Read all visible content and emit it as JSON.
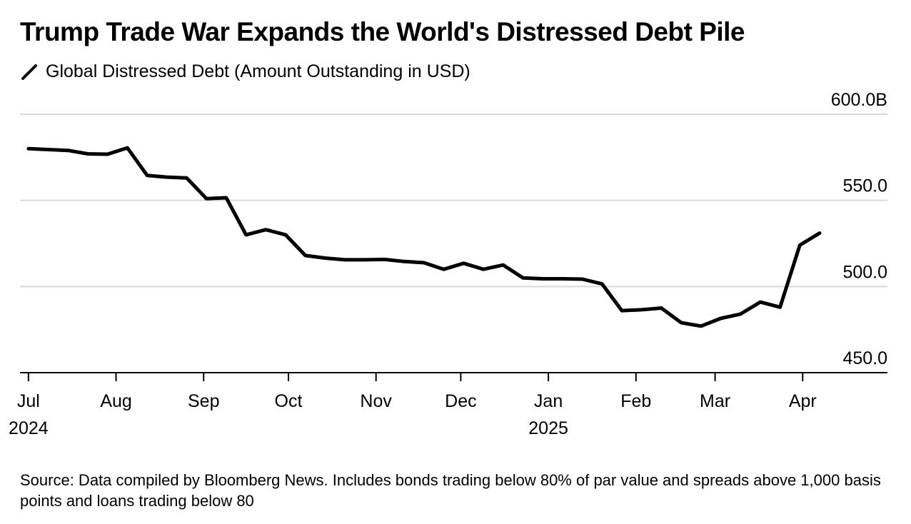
{
  "chart_data": {
    "type": "line",
    "title": "Trump Trade War Expands the World's Distressed Debt Pile",
    "series": [
      {
        "name": "Global Distressed Debt (Amount Outstanding in USD)",
        "color": "#000000",
        "dates": [
          "2024-07-01",
          "2024-07-08",
          "2024-07-15",
          "2024-07-22",
          "2024-07-29",
          "2024-08-05",
          "2024-08-12",
          "2024-08-19",
          "2024-08-26",
          "2024-09-02",
          "2024-09-09",
          "2024-09-16",
          "2024-09-23",
          "2024-09-30",
          "2024-10-07",
          "2024-10-14",
          "2024-10-21",
          "2024-10-28",
          "2024-11-04",
          "2024-11-11",
          "2024-11-18",
          "2024-11-25",
          "2024-12-02",
          "2024-12-09",
          "2024-12-16",
          "2024-12-23",
          "2024-12-30",
          "2025-01-06",
          "2025-01-13",
          "2025-01-20",
          "2025-01-27",
          "2025-02-03",
          "2025-02-10",
          "2025-02-17",
          "2025-02-24",
          "2025-03-03",
          "2025-03-10",
          "2025-03-17",
          "2025-03-24",
          "2025-03-31",
          "2025-04-07"
        ],
        "values": [
          580.0,
          579.5,
          579.0,
          577.0,
          576.8,
          580.5,
          564.5,
          563.5,
          563.0,
          551.0,
          551.5,
          530.0,
          533.0,
          530.0,
          518.0,
          516.5,
          515.5,
          515.5,
          515.7,
          514.5,
          513.8,
          510.0,
          513.5,
          510.0,
          512.5,
          505.0,
          504.5,
          504.5,
          504.3,
          501.5,
          486.0,
          486.5,
          487.5,
          479.0,
          477.0,
          481.5,
          484.0,
          491.0,
          488.0,
          524.0,
          531.0
        ]
      }
    ],
    "y_range": [
      450,
      600
    ],
    "y_ticks": [
      {
        "value": 600,
        "label": "600.0B"
      },
      {
        "value": 550,
        "label": "550.0"
      },
      {
        "value": 500,
        "label": "500.0"
      },
      {
        "value": 450,
        "label": "450.0"
      }
    ],
    "x_range": [
      "2024-06-28",
      "2025-05-01"
    ],
    "x_ticks": [
      {
        "date": "2024-07-01",
        "month": "Jul",
        "year": "2024"
      },
      {
        "date": "2024-08-01",
        "month": "Aug",
        "year": ""
      },
      {
        "date": "2024-09-01",
        "month": "Sep",
        "year": ""
      },
      {
        "date": "2024-10-01",
        "month": "Oct",
        "year": ""
      },
      {
        "date": "2024-11-01",
        "month": "Nov",
        "year": ""
      },
      {
        "date": "2024-12-01",
        "month": "Dec",
        "year": ""
      },
      {
        "date": "2025-01-01",
        "month": "Jan",
        "year": "2025"
      },
      {
        "date": "2025-02-01",
        "month": "Feb",
        "year": ""
      },
      {
        "date": "2025-03-01",
        "month": "Mar",
        "year": ""
      },
      {
        "date": "2025-04-01",
        "month": "Apr",
        "year": ""
      }
    ],
    "gridlines": true,
    "source": "Source: Data compiled by Bloomberg News. Includes bonds trading below 80% of par value and spreads above 1,000 basis points and loans trading below 80"
  }
}
